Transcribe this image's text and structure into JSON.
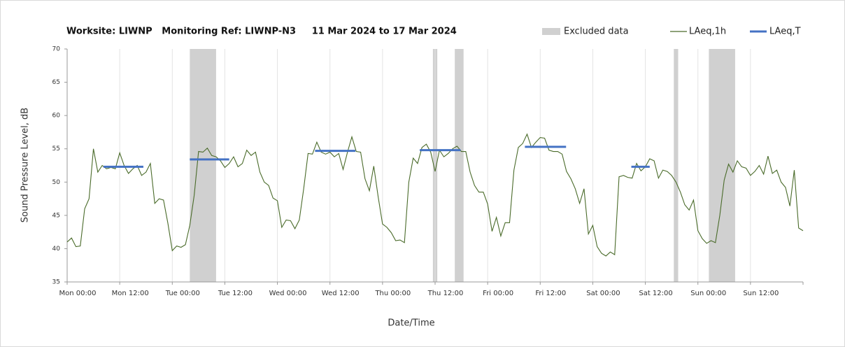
{
  "chart_data": {
    "type": "line",
    "title": "Worksite: LIWNP   Monitoring Ref: LIWNP-N3     11 Mar 2024 to 17 Mar 2024",
    "xlabel": "Date/Time",
    "ylabel": "Sound Pressure Level, dB",
    "xlim": [
      0,
      168
    ],
    "ylim": [
      35,
      70
    ],
    "yticks": [
      35,
      40,
      45,
      50,
      55,
      60,
      65,
      70
    ],
    "xticks": [
      {
        "value": 0,
        "label": "Mon 00:00"
      },
      {
        "value": 12,
        "label": "Mon 12:00"
      },
      {
        "value": 24,
        "label": "Tue 00:00"
      },
      {
        "value": 36,
        "label": "Tue 12:00"
      },
      {
        "value": 48,
        "label": "Wed 00:00"
      },
      {
        "value": 60,
        "label": "Wed 12:00"
      },
      {
        "value": 72,
        "label": "Thu 00:00"
      },
      {
        "value": 84,
        "label": "Thu 12:00"
      },
      {
        "value": 96,
        "label": "Fri 00:00"
      },
      {
        "value": 108,
        "label": "Fri 12:00"
      },
      {
        "value": 120,
        "label": "Sat 00:00"
      },
      {
        "value": 132,
        "label": "Sat 12:00"
      },
      {
        "value": 144,
        "label": "Sun 00:00"
      },
      {
        "value": 156,
        "label": "Sun 12:00"
      }
    ],
    "grid": true,
    "excluded": {
      "name": "Excluded data",
      "color": "#d0d0d0",
      "ranges": [
        [
          28,
          34
        ],
        [
          83.5,
          84.5
        ],
        [
          88.5,
          90.5
        ],
        [
          138.5,
          139.5
        ],
        [
          146.5,
          152.5
        ]
      ]
    },
    "x": [
      0,
      1,
      2,
      3,
      4,
      5,
      6,
      7,
      8,
      9,
      10,
      11,
      12,
      13,
      14,
      15,
      16,
      17,
      18,
      19,
      20,
      21,
      22,
      23,
      24,
      25,
      26,
      27,
      28,
      29,
      30,
      31,
      32,
      33,
      34,
      35,
      36,
      37,
      38,
      39,
      40,
      41,
      42,
      43,
      44,
      45,
      46,
      47,
      48,
      49,
      50,
      51,
      52,
      53,
      54,
      55,
      56,
      57,
      58,
      59,
      60,
      61,
      62,
      63,
      64,
      65,
      66,
      67,
      68,
      69,
      70,
      71,
      72,
      73,
      74,
      75,
      76,
      77,
      78,
      79,
      80,
      81,
      82,
      83,
      84,
      85,
      86,
      87,
      88,
      89,
      90,
      91,
      92,
      93,
      94,
      95,
      96,
      97,
      98,
      99,
      100,
      101,
      102,
      103,
      104,
      105,
      106,
      107,
      108,
      109,
      110,
      111,
      112,
      113,
      114,
      115,
      116,
      117,
      118,
      119,
      120,
      121,
      122,
      123,
      124,
      125,
      126,
      127,
      128,
      129,
      130,
      131,
      132,
      133,
      134,
      135,
      136,
      137,
      138,
      139,
      140,
      141,
      142,
      143,
      144,
      145,
      146,
      147,
      148,
      149,
      150,
      151,
      152,
      153,
      154,
      155,
      156,
      157,
      158,
      159,
      160,
      161,
      162,
      163,
      164,
      165,
      166,
      167,
      168
    ],
    "series": [
      {
        "name": "LAeq,1h",
        "color": "#4a6b2a",
        "values": [
          41,
          41.6,
          40.3,
          40.4,
          46,
          47.5,
          55,
          51.5,
          52.5,
          52,
          52.2,
          52,
          54.4,
          52.5,
          51.3,
          52,
          52.5,
          51,
          51.5,
          52.8,
          46.8,
          47.5,
          47.3,
          43.8,
          39.7,
          40.4,
          40.2,
          40.6,
          43.5,
          48,
          54.6,
          54.5,
          55.1,
          54,
          53.8,
          53.2,
          52.2,
          52.8,
          53.8,
          52.3,
          52.8,
          54.8,
          54,
          54.5,
          51.5,
          50,
          49.5,
          47.6,
          47.2,
          43.2,
          44.3,
          44.2,
          43,
          44.3,
          49,
          54.3,
          54.2,
          56,
          54.5,
          54.2,
          54.5,
          53.8,
          54.3,
          51.9,
          54.5,
          56.8,
          54.6,
          54.5,
          50.5,
          48.7,
          52.4,
          47.8,
          43.7,
          43.2,
          42.4,
          41.2,
          41.3,
          40.9,
          50,
          53.6,
          52.8,
          55.2,
          55.7,
          54.5,
          51.6,
          54.8,
          53.8,
          54.3,
          55,
          55.4,
          54.6,
          54.6,
          51.5,
          49.5,
          48.5,
          48.5,
          46.7,
          42.6,
          44.7,
          41.9,
          43.9,
          43.9,
          51.8,
          55.2,
          55.8,
          57.2,
          55.2,
          56,
          56.7,
          56.6,
          54.8,
          54.6,
          54.6,
          54.2,
          51.6,
          50.5,
          49,
          46.8,
          49,
          42.2,
          43.5,
          40.3,
          39.3,
          38.9,
          39.5,
          39.1,
          50.8,
          51,
          50.7,
          50.6,
          52.8,
          51.7,
          52.3,
          53.5,
          53.2,
          50.6,
          51.8,
          51.6,
          51,
          50,
          48.5,
          46.6,
          45.8,
          47.3,
          42.7,
          41.5,
          40.8,
          41.2,
          40.9,
          45,
          50.3,
          52.7,
          51.5,
          53.2,
          52.3,
          52.1,
          51,
          51.6,
          52.5,
          51.2,
          53.9,
          51.3,
          51.8,
          50,
          49.2,
          46.4,
          51.8,
          43.1,
          42.7
        ]
      },
      {
        "name": "LAeq,T",
        "color": "#4472c4",
        "segments": [
          {
            "start": 8.3,
            "end": 17.4,
            "value": 52.3
          },
          {
            "start": 28,
            "end": 37,
            "value": 53.4
          },
          {
            "start": 56.6,
            "end": 65.8,
            "value": 54.7
          },
          {
            "start": 80.5,
            "end": 89.8,
            "value": 54.8
          },
          {
            "start": 104.5,
            "end": 113.9,
            "value": 55.3
          },
          {
            "start": 128.8,
            "end": 133,
            "value": 52.3
          }
        ]
      }
    ]
  }
}
